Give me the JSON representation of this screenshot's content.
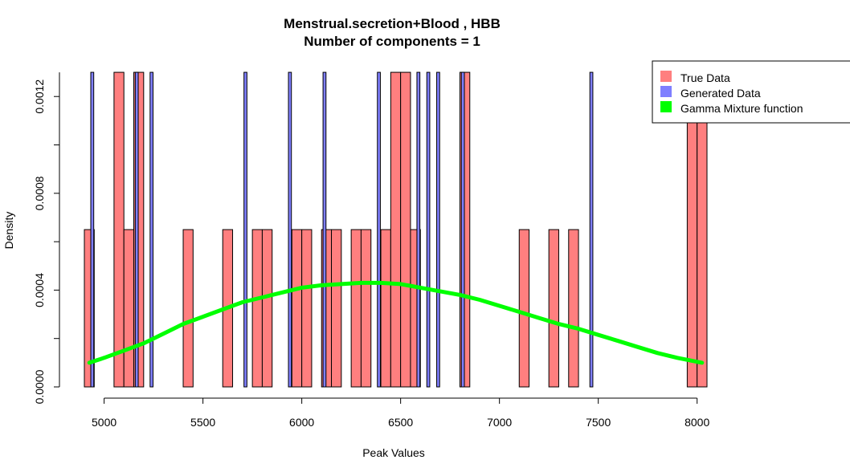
{
  "chart_data": {
    "type": "bar",
    "title": "Menstrual.secretion+Blood , HBB",
    "subtitle": "Number of components =  1",
    "xlabel": "Peak Values",
    "ylabel": "Density",
    "xlim": [
      4900,
      8050
    ],
    "ylim": [
      0,
      0.00135
    ],
    "x_ticks": [
      "5000",
      "5500",
      "6000",
      "6500",
      "7000",
      "7500",
      "8000"
    ],
    "y_ticks": [
      "0.0000",
      "0.0004",
      "0.0008",
      "0.0012"
    ],
    "grid": false,
    "legend_position": "top-right",
    "colors": {
      "true_data": "#FF7F7F",
      "generated_data": "#7F7FFF",
      "gamma": "#00FF00"
    },
    "series": [
      {
        "name": "True Data",
        "bin_width": 50,
        "bins": [
          {
            "x0": 4900,
            "value": 0.00065
          },
          {
            "x0": 5050,
            "value": 0.0013
          },
          {
            "x0": 5100,
            "value": 0.00065
          },
          {
            "x0": 5150,
            "value": 0.0013
          },
          {
            "x0": 5400,
            "value": 0.00065
          },
          {
            "x0": 5600,
            "value": 0.00065
          },
          {
            "x0": 5750,
            "value": 0.00065
          },
          {
            "x0": 5800,
            "value": 0.00065
          },
          {
            "x0": 5950,
            "value": 0.00065
          },
          {
            "x0": 6000,
            "value": 0.00065
          },
          {
            "x0": 6100,
            "value": 0.00065
          },
          {
            "x0": 6150,
            "value": 0.00065
          },
          {
            "x0": 6250,
            "value": 0.00065
          },
          {
            "x0": 6300,
            "value": 0.00065
          },
          {
            "x0": 6400,
            "value": 0.00065
          },
          {
            "x0": 6450,
            "value": 0.0013
          },
          {
            "x0": 6500,
            "value": 0.0013
          },
          {
            "x0": 6550,
            "value": 0.00065
          },
          {
            "x0": 6800,
            "value": 0.0013
          },
          {
            "x0": 7100,
            "value": 0.00065
          },
          {
            "x0": 7250,
            "value": 0.00065
          },
          {
            "x0": 7350,
            "value": 0.00065
          },
          {
            "x0": 7950,
            "value": 0.0013
          },
          {
            "x0": 8000,
            "value": 0.0013
          }
        ]
      },
      {
        "name": "Generated Data",
        "bin_width": 25,
        "bins": [
          {
            "x0": 4925,
            "value": 0.0013
          },
          {
            "x0": 5150,
            "value": 0.0013
          },
          {
            "x0": 5225,
            "value": 0.0013
          },
          {
            "x0": 5700,
            "value": 0.0013
          },
          {
            "x0": 5925,
            "value": 0.0013
          },
          {
            "x0": 6100,
            "value": 0.0013
          },
          {
            "x0": 6375,
            "value": 0.0013
          },
          {
            "x0": 6575,
            "value": 0.0013
          },
          {
            "x0": 6625,
            "value": 0.0013
          },
          {
            "x0": 6675,
            "value": 0.0013
          },
          {
            "x0": 6800,
            "value": 0.0013
          },
          {
            "x0": 7450,
            "value": 0.0013
          }
        ]
      },
      {
        "name": "Gamma Mixture function",
        "type": "line",
        "x": [
          4925,
          5000,
          5100,
          5200,
          5300,
          5400,
          5500,
          5600,
          5700,
          5800,
          5900,
          6000,
          6100,
          6200,
          6300,
          6400,
          6500,
          6600,
          6700,
          6800,
          6900,
          7000,
          7100,
          7200,
          7300,
          7400,
          7500,
          7600,
          7700,
          7800,
          7900,
          8025
        ],
        "values": [
          0.0001,
          0.00012,
          0.00015,
          0.00018,
          0.00022,
          0.00026,
          0.00029,
          0.00032,
          0.00035,
          0.00037,
          0.00039,
          0.00041,
          0.00042,
          0.000425,
          0.00043,
          0.00043,
          0.000425,
          0.00041,
          0.000395,
          0.00038,
          0.00036,
          0.000335,
          0.00031,
          0.000285,
          0.00026,
          0.00024,
          0.000215,
          0.00019,
          0.000165,
          0.00014,
          0.00012,
          0.0001
        ]
      }
    ]
  }
}
